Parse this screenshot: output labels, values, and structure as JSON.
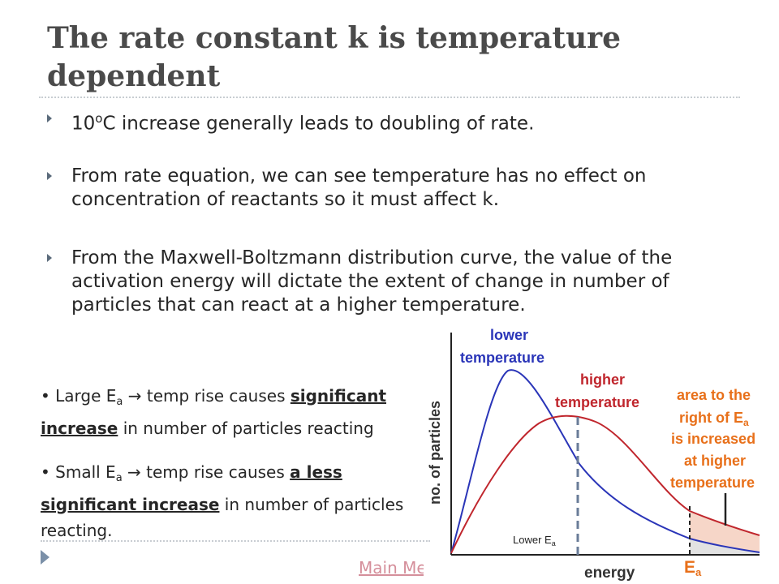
{
  "slide": {
    "title": "The rate constant k is temperature dependent",
    "bullets": [
      {
        "pre": "10",
        "sup": "o",
        "post": "C increase generally leads to doubling of rate."
      },
      {
        "text": "From rate equation, we can see temperature has no effect on concentration of reactants so it must affect k."
      },
      {
        "text": "From the Maxwell-Boltzmann  distribution curve, the value of the activation energy will dictate the extent of change in number of particles that can react at a higher temperature."
      }
    ],
    "notes": [
      {
        "marker": "• ",
        "lead": "Large E",
        "sub": "a",
        "arrow": " → ",
        "mid": "temp rise causes ",
        "emph_1": "significant",
        "emph_2": "increase",
        "tail": " in number of particles reacting"
      },
      {
        "marker": "• ",
        "lead": "Small E",
        "sub": "a",
        "arrow": " → ",
        "mid": "temp rise causes ",
        "emph_1": "a less",
        "emph_2": "significant increase",
        "tail": " in number of particles reacting."
      }
    ],
    "footer_link": "Main Menu"
  },
  "diagram": {
    "y_axis_label": "no. of particles",
    "x_axis_label": "energy",
    "curve_lower_label": [
      "lower",
      "temperature"
    ],
    "curve_higher_label": [
      "higher",
      "temperature"
    ],
    "area_label": [
      "area to the",
      "right of E",
      "is increased",
      "at higher",
      "temperature"
    ],
    "area_label_sub": "a",
    "lower_ea_label": "Lower E",
    "lower_ea_sub": "a",
    "ea_marker": "E",
    "ea_marker_sub": "a",
    "colors": {
      "lower_curve": "#2a35b8",
      "higher_curve": "#c0262d",
      "annotation_orange": "#e8701a",
      "shaded_area": "#f6d6c8",
      "dashed_line": "#6a7c98",
      "axis": "#222222"
    }
  }
}
